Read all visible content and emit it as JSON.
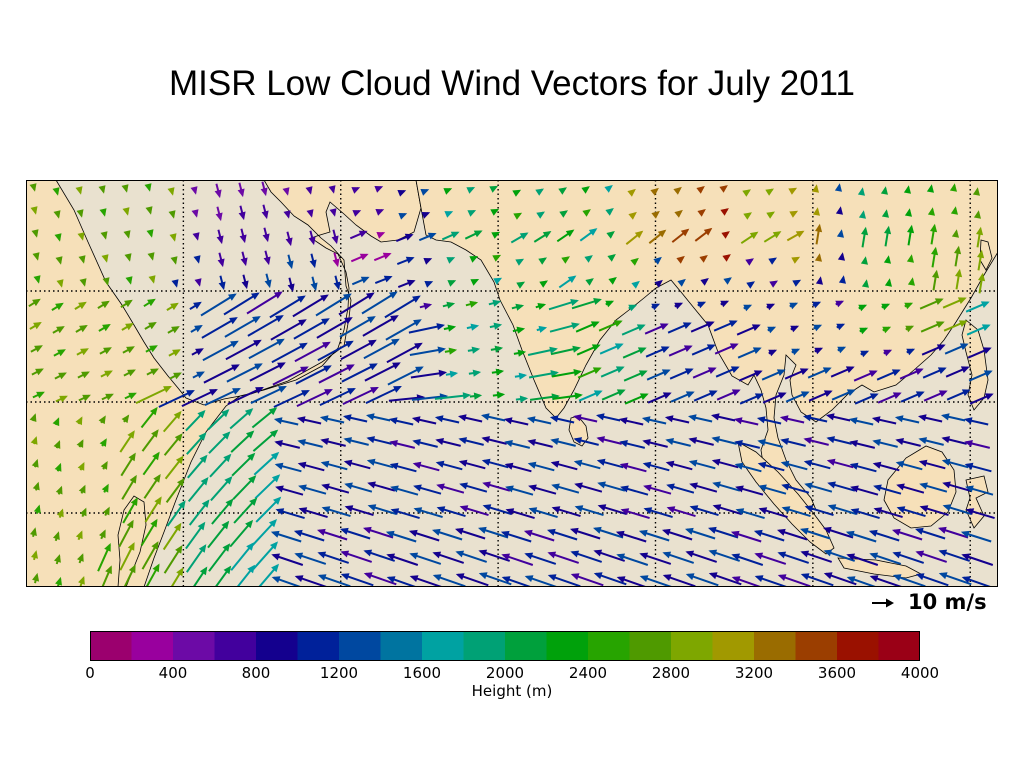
{
  "title": "MISR Low Cloud Wind Vectors for July 2011",
  "colors": {
    "ocean": "#e9e1cf",
    "land": "#f6e0b9",
    "coast": "#000000"
  },
  "scale": {
    "label": "10 m/s",
    "speed": 10
  },
  "colorbar": {
    "label": "Height (m)",
    "min": 0,
    "max": 4000,
    "step": 200,
    "ticks": [
      "0",
      "400",
      "800",
      "1200",
      "1600",
      "2000",
      "2400",
      "2800",
      "3200",
      "3600",
      "4000"
    ],
    "colors": [
      "#9b006e",
      "#99009e",
      "#6c0aa6",
      "#42009d",
      "#14008e",
      "#00219a",
      "#0048a0",
      "#0074a0",
      "#00a2a2",
      "#00a175",
      "#00a03c",
      "#00a10b",
      "#27a400",
      "#4f9a00",
      "#7ea700",
      "#a19900",
      "#9a6c00",
      "#9b3e00",
      "#9a1100",
      "#9a0016"
    ]
  },
  "map": {
    "lon_range": [
      30,
      135
    ],
    "lat_range": [
      -20,
      24
    ],
    "graticule_lon": [
      30,
      47,
      64,
      81,
      98,
      115,
      132
    ],
    "graticule_lat": [
      24,
      12,
      0,
      -12
    ]
  }
}
